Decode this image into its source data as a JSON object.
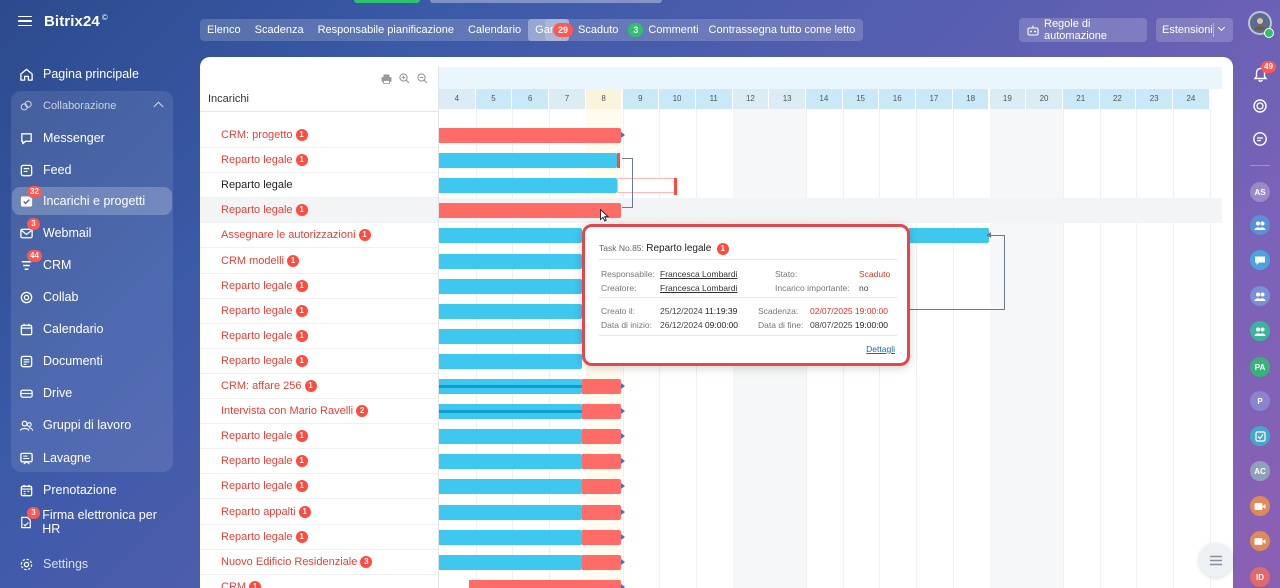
{
  "app": {
    "logo": "Bitrix24",
    "logo_mark": "©"
  },
  "sidebar": {
    "items": [
      {
        "label": "Pagina principale",
        "icon": "home-icon",
        "badge": ""
      },
      {
        "label": "Collaborazione",
        "icon": "collab-group-icon",
        "badge": ""
      },
      {
        "label": "Messenger",
        "icon": "chat-icon",
        "badge": ""
      },
      {
        "label": "Feed",
        "icon": "feed-icon",
        "badge": ""
      },
      {
        "label": "Incarichi e progetti",
        "icon": "tasks-icon",
        "badge": "32"
      },
      {
        "label": "Webmail",
        "icon": "mail-icon",
        "badge": "3"
      },
      {
        "label": "CRM",
        "icon": "crm-icon",
        "badge": "44"
      },
      {
        "label": "Collab",
        "icon": "collab-icon",
        "badge": ""
      },
      {
        "label": "Calendario",
        "icon": "calendar-icon",
        "badge": ""
      },
      {
        "label": "Documenti",
        "icon": "documents-icon",
        "badge": ""
      },
      {
        "label": "Drive",
        "icon": "drive-icon",
        "badge": ""
      },
      {
        "label": "Gruppi di lavoro",
        "icon": "groups-icon",
        "badge": ""
      },
      {
        "label": "Lavagne",
        "icon": "boards-icon",
        "badge": ""
      },
      {
        "label": "Prenotazione",
        "icon": "booking-icon",
        "badge": ""
      },
      {
        "label": "Firma elettronica per HR",
        "icon": "signature-icon",
        "badge": "3"
      },
      {
        "label": "Settings",
        "icon": "settings-icon",
        "badge": ""
      }
    ]
  },
  "toolbar": {
    "views": [
      "Elenco",
      "Scadenza",
      "Responsabile pianificazione",
      "Calendario",
      "Gantt"
    ],
    "active_view": "Gantt",
    "overdue_count": "29",
    "overdue_label": "Scaduto",
    "comments_count": "3",
    "comments_label": "Commenti",
    "mark_read": "Contrassegna tutto come letto",
    "automation": "Regole di automazione",
    "extensions": "Estensioni"
  },
  "gantt": {
    "column_header": "Incarichi",
    "days": [
      "4",
      "5",
      "6",
      "7",
      "8",
      "9",
      "10",
      "11",
      "12",
      "13",
      "14",
      "15",
      "16",
      "17",
      "18",
      "19",
      "20",
      "21",
      "22",
      "23",
      "24"
    ],
    "tasks": [
      {
        "name": "CRM: progetto",
        "count": "1",
        "red": true
      },
      {
        "name": "Reparto legale",
        "count": "1",
        "red": true
      },
      {
        "name": "Reparto legale",
        "count": "",
        "red": false
      },
      {
        "name": "Reparto legale",
        "count": "1",
        "red": true
      },
      {
        "name": "Assegnare le autorizzazioni",
        "count": "1",
        "red": true
      },
      {
        "name": "CRM modelli",
        "count": "1",
        "red": true
      },
      {
        "name": "Reparto legale",
        "count": "1",
        "red": true
      },
      {
        "name": "Reparto legale",
        "count": "1",
        "red": true
      },
      {
        "name": "Reparto legale",
        "count": "1",
        "red": true
      },
      {
        "name": "Reparto legale",
        "count": "1",
        "red": true
      },
      {
        "name": "CRM: affare 256",
        "count": "1",
        "red": true
      },
      {
        "name": "Intervista con Mario Ravelli",
        "count": "2",
        "red": true
      },
      {
        "name": "Reparto legale",
        "count": "1",
        "red": true
      },
      {
        "name": "Reparto legale",
        "count": "1",
        "red": true
      },
      {
        "name": "Reparto legale",
        "count": "1",
        "red": true
      },
      {
        "name": "Reparto appalti",
        "count": "1",
        "red": true
      },
      {
        "name": "Reparto legale",
        "count": "1",
        "red": true
      },
      {
        "name": "Nuovo Edificio Residenziale",
        "count": "3",
        "red": true
      },
      {
        "name": "CRM",
        "count": "1",
        "red": true
      }
    ]
  },
  "tooltip": {
    "task_prefix": "Task No.85:",
    "task_name": "Reparto legale",
    "task_count": "1",
    "responsible_label": "Responsabile:",
    "responsible": "Francesca Lombardi",
    "creator_label": "Creatore:",
    "creator": "Francesca Lombardi",
    "status_label": "Stato:",
    "status": "Scaduto",
    "important_label": "Incarico importante:",
    "important": "no",
    "created_label": "Creato il:",
    "created_date": "25/12/2024",
    "created_time": "11:19:39",
    "start_label": "Data di inizio:",
    "start_date": "26/12/2024",
    "start_time": "09:00:00",
    "deadline_label": "Scadenza:",
    "deadline": "02/07/2025 19:00:00",
    "end_label": "Data di fine:",
    "end_date": "08/07/2025",
    "end_time": "19:00:00",
    "details": "Dettagli"
  },
  "rail": {
    "notifications_badge": "49",
    "avatars": [
      "AS",
      "PA",
      "P",
      "AC",
      "ID"
    ]
  },
  "colors": {
    "accent_red": "#ff5752",
    "bar_blue": "#3ec8f0",
    "bar_red": "#ff6b66",
    "overdue_text": "#e34138"
  }
}
